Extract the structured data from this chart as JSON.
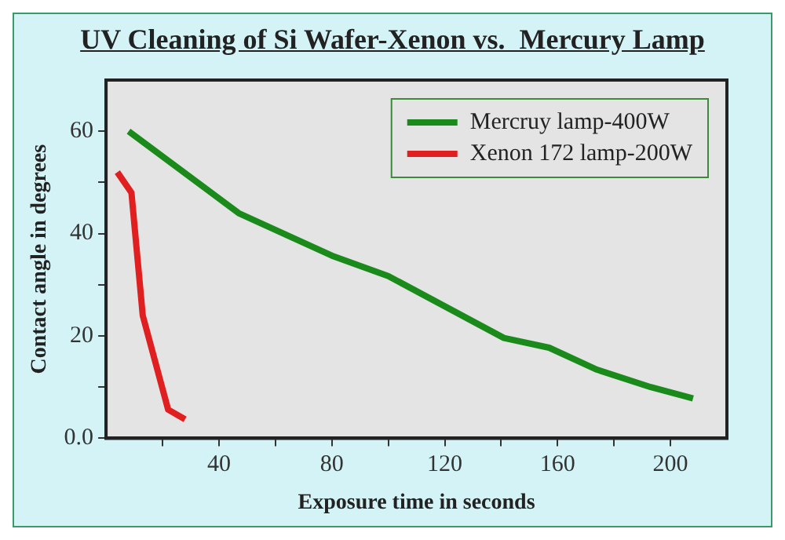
{
  "chart_data": {
    "type": "line",
    "title": "UV Cleaning of Si Wafer-Xenon vs.  Mercury Lamp",
    "xlabel": "Exposure time in seconds",
    "ylabel": "Contact angle in degrees",
    "xlim": [
      0,
      220
    ],
    "xticks": [
      {
        "value": 20,
        "label": null
      },
      40,
      {
        "value": 60,
        "label": null
      },
      80,
      {
        "value": 100,
        "label": null
      },
      120,
      {
        "value": 140,
        "label": null
      },
      160,
      {
        "value": 180,
        "label": null
      },
      200
    ],
    "ylim": [
      0,
      70
    ],
    "yticks": [
      {
        "value": 0,
        "label": "0.0"
      },
      {
        "value": 10,
        "label": null
      },
      20,
      {
        "value": 30,
        "label": null
      },
      40,
      {
        "value": 50,
        "label": null
      },
      60
    ],
    "legend": "top right",
    "grid": false,
    "marker": "none",
    "line_style": "solid",
    "series": [
      {
        "name": "Mercruy lamp-400W",
        "color": "#1a8a1a",
        "x": [
          8,
          47,
          80,
          100,
          141,
          157,
          174,
          193,
          208
        ],
        "values": [
          60,
          44,
          35.7,
          31.7,
          19.6,
          17.7,
          13.4,
          10,
          7.8
        ]
      },
      {
        "name": "Xenon 172 lamp-200W",
        "color": "#e02020",
        "x": [
          4,
          9,
          13,
          22,
          28
        ],
        "values": [
          52,
          48,
          24,
          5.6,
          3.7
        ]
      }
    ]
  }
}
